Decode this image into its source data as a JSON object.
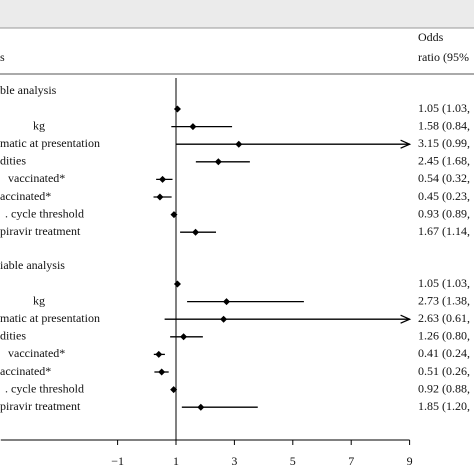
{
  "chart_data": {
    "type": "forest",
    "header": {
      "left": "s",
      "right": [
        "Odds",
        "ratio (95%"
      ]
    },
    "xlim": [
      -5,
      9
    ],
    "xticks": [
      {
        "value": -1,
        "label": "−1"
      },
      1,
      3,
      5,
      7,
      9
    ],
    "reference": 1,
    "color": "#000000",
    "sections": [
      {
        "title": "ble analysis",
        "rows": [
          {
            "label": "",
            "estimate": 1.05,
            "lo": 1.03,
            "hi": 1.07,
            "value_label": "1.05 (1.03,"
          },
          {
            "label": " kg",
            "estimate": 1.58,
            "lo": 0.84,
            "hi": 2.92,
            "value_label": "1.58 (0.84,"
          },
          {
            "label": "matic at presentation",
            "estimate": 3.15,
            "lo": 0.99,
            "hi": 10.5,
            "value_label": "3.15 (0.99,"
          },
          {
            "label": "dities",
            "estimate": 2.45,
            "lo": 1.68,
            "hi": 3.53,
            "value_label": "2.45 (1.68,"
          },
          {
            "label": " vaccinated*",
            "estimate": 0.54,
            "lo": 0.32,
            "hi": 0.88,
            "value_label": "0.54 (0.32,"
          },
          {
            "label": "accinated*",
            "estimate": 0.45,
            "lo": 0.23,
            "hi": 0.85,
            "value_label": "0.45 (0.23,"
          },
          {
            "label": ". cycle threshold",
            "estimate": 0.93,
            "lo": 0.89,
            "hi": 0.97,
            "value_label": "0.93 (0.89,"
          },
          {
            "label": "piravir treatment",
            "estimate": 1.67,
            "lo": 1.14,
            "hi": 2.37,
            "value_label": "1.67 (1.14,"
          }
        ]
      },
      {
        "title": "iable analysis",
        "rows": [
          {
            "label": "",
            "estimate": 1.05,
            "lo": 1.03,
            "hi": 1.07,
            "value_label": "1.05 (1.03,"
          },
          {
            "label": " kg",
            "estimate": 2.73,
            "lo": 1.38,
            "hi": 5.38,
            "value_label": "2.73 (1.38,"
          },
          {
            "label": "matic at presentation",
            "estimate": 2.63,
            "lo": 0.61,
            "hi": 10.5,
            "value_label": "2.63 (0.61,"
          },
          {
            "label": "dities",
            "estimate": 1.26,
            "lo": 0.8,
            "hi": 1.92,
            "value_label": "1.26 (0.80,"
          },
          {
            "label": " vaccinated*",
            "estimate": 0.41,
            "lo": 0.24,
            "hi": 0.62,
            "value_label": "0.41 (0.24,"
          },
          {
            "label": "accinated*",
            "estimate": 0.51,
            "lo": 0.26,
            "hi": 0.75,
            "value_label": "0.51 (0.26,"
          },
          {
            "label": ". cycle threshold",
            "estimate": 0.92,
            "lo": 0.88,
            "hi": 0.96,
            "value_label": "0.92 (0.88,"
          },
          {
            "label": "piravir treatment",
            "estimate": 1.85,
            "lo": 1.2,
            "hi": 3.8,
            "value_label": "1.85 (1.20,"
          }
        ]
      }
    ]
  }
}
